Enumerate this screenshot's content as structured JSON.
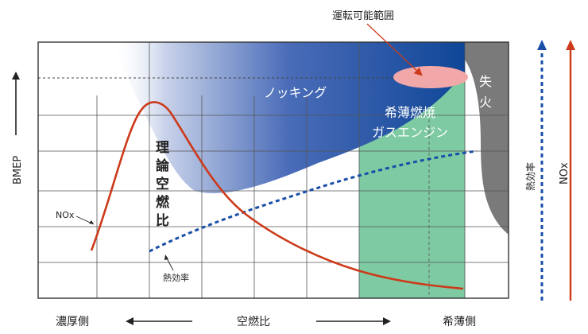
{
  "labels": {
    "operating_range": "運転可能範囲",
    "knocking": "ノッキング",
    "lean_engine_line1": "希薄燃焼",
    "lean_engine_line2": "ガスエンジン",
    "misfire_line1": "失",
    "misfire_line2": "火",
    "stoich_chars": [
      "理",
      "論",
      "空",
      "燃",
      "比"
    ],
    "nox_curve": "NOx",
    "efficiency_curve": "熱効率",
    "y_axis": "BMEP",
    "x_axis_left": "濃厚側",
    "x_axis_center": "空燃比",
    "x_axis_right": "希薄側",
    "right_axis_efficiency": "熱効率",
    "right_axis_nox": "NOx"
  },
  "colors": {
    "nox": "#cc3a1a",
    "efficiency": "#1a4fa8",
    "knock_region": "#1c4f9c",
    "lean_region": "#7ecaa3",
    "misfire_region": "#7a7a7a",
    "operating_range": "#f2a8a8",
    "grid": "#444444",
    "arrow": "#222222"
  }
}
